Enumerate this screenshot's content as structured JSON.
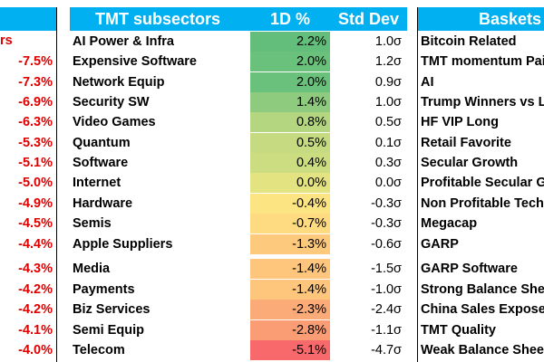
{
  "left_panel": {
    "header_fragment": "rs",
    "values": [
      "-7.5%",
      "-7.3%",
      "-6.9%",
      "-6.3%",
      "-5.3%",
      "-5.1%",
      "-5.0%",
      "-4.9%",
      "-4.5%",
      "-4.4%",
      "-4.3%",
      "-4.2%",
      "-4.2%",
      "-4.1%",
      "-4.0%"
    ]
  },
  "tmt_panel": {
    "headers": {
      "subsectors": "TMT subsectors",
      "one_day": "1D %",
      "std_dev": "Std Dev"
    },
    "rows": [
      {
        "name": "AI Power & Infra",
        "pct": "2.2%",
        "std": "1.0σ",
        "color": "#63be7b"
      },
      {
        "name": "Expensive Software",
        "pct": "2.0%",
        "std": "1.2σ",
        "color": "#6ac17c"
      },
      {
        "name": "Network Equip",
        "pct": "2.0%",
        "std": "0.9σ",
        "color": "#6ac17c"
      },
      {
        "name": "Security SW",
        "pct": "1.4%",
        "std": "1.0σ",
        "color": "#8ecb7e"
      },
      {
        "name": "Video Games",
        "pct": "0.8%",
        "std": "0.5σ",
        "color": "#b4d680"
      },
      {
        "name": "Quantum",
        "pct": "0.5%",
        "std": "0.1σ",
        "color": "#c6db81"
      },
      {
        "name": "Software",
        "pct": "0.4%",
        "std": "0.3σ",
        "color": "#ccdc81"
      },
      {
        "name": "Internet",
        "pct": "0.0%",
        "std": "0.0σ",
        "color": "#e4e382"
      },
      {
        "name": "Hardware",
        "pct": "-0.4%",
        "std": "-0.3σ",
        "color": "#fde482"
      },
      {
        "name": "Semis",
        "pct": "-0.7%",
        "std": "-0.3σ",
        "color": "#fedb81"
      },
      {
        "name": "Apple Suppliers",
        "pct": "-1.3%",
        "std": "-0.6σ",
        "color": "#fdc97d"
      },
      {
        "name": "Media",
        "pct": "-1.4%",
        "std": "-1.5σ",
        "color": "#fdc67c"
      },
      {
        "name": "Payments",
        "pct": "-1.4%",
        "std": "-1.0σ",
        "color": "#fdc67c"
      },
      {
        "name": "Biz Services",
        "pct": "-2.3%",
        "std": "-2.4σ",
        "color": "#fbab77"
      },
      {
        "name": "Semi Equip",
        "pct": "-2.8%",
        "std": "-1.1σ",
        "color": "#fa9d74"
      },
      {
        "name": "Telecom",
        "pct": "-5.1%",
        "std": "-4.7σ",
        "color": "#f8696b"
      }
    ]
  },
  "baskets_panel": {
    "header": "Baskets",
    "items": [
      "Bitcoin Related",
      "TMT momentum Pai",
      "AI",
      "Trump Winners vs Lo",
      "HF VIP Long",
      "Retail Favorite",
      "Secular Growth",
      "Profitable Secular G",
      "Non Profitable Tech",
      "Megacap",
      "GARP",
      "GARP Software",
      "Strong Balance Shee",
      "China Sales Exposed",
      "TMT Quality",
      "Weak Balance Sheet"
    ]
  }
}
